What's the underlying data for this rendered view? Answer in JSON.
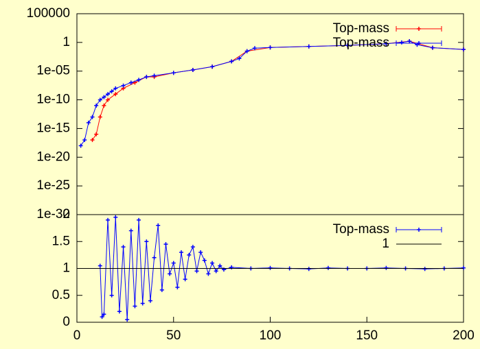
{
  "chart_data": [
    {
      "type": "line",
      "log_y": true,
      "legend": "top-right",
      "xlim": [
        0,
        200
      ],
      "ylim": [
        1e-30,
        100000
      ],
      "yticks": [
        100000,
        1,
        {
          "value": 1e-05,
          "label": "1e-05"
        },
        {
          "value": 1e-10,
          "label": "1e-10"
        },
        {
          "value": 1e-15,
          "label": "1e-15"
        },
        {
          "value": 1e-20,
          "label": "1e-20"
        },
        {
          "value": 1e-25,
          "label": "1e-25"
        },
        {
          "value": 1e-30,
          "label": "1e-30"
        }
      ],
      "series": [
        {
          "name": "Top-mass",
          "color": "#ff0000",
          "x": [
            8,
            10,
            12,
            14,
            16,
            20,
            24,
            30,
            36,
            40,
            50,
            60,
            70,
            80,
            88,
            100,
            120,
            140,
            160,
            172,
            184,
            200
          ],
          "values": [
            1e-17,
            1e-16,
            1e-13,
            1e-11,
            1e-10,
            1e-09,
            1e-08,
            1e-07,
            1e-06,
            1e-06,
            5e-06,
            1.6e-05,
            6e-05,
            0.0005,
            0.03,
            0.13,
            0.2,
            0.3,
            0.6,
            1.6,
            0.12,
            0.06
          ]
        },
        {
          "name": "Top-mass",
          "color": "#0000ff",
          "x": [
            2,
            4,
            6,
            8,
            10,
            12,
            14,
            16,
            18,
            20,
            24,
            28,
            32,
            36,
            40,
            50,
            60,
            70,
            80,
            84,
            88,
            92,
            100,
            120,
            140,
            160,
            168,
            172,
            176,
            184,
            200
          ],
          "values": [
            1e-18,
            1e-17,
            1e-14,
            1e-13,
            1e-11,
            1e-10,
            3e-10,
            1e-09,
            3e-09,
            1e-08,
            3e-08,
            1e-07,
            3e-07,
            1e-06,
            1.6e-06,
            5e-06,
            1.6e-05,
            6e-05,
            0.0005,
            0.0016,
            0.03,
            0.1,
            0.13,
            0.2,
            0.3,
            0.6,
            1,
            1.6,
            0.4,
            0.12,
            0.06
          ]
        }
      ]
    },
    {
      "type": "line",
      "legend": "top-right",
      "xlim": [
        0,
        200
      ],
      "ylim": [
        0,
        2
      ],
      "xticks": [
        0,
        50,
        100,
        150,
        200
      ],
      "yticks": [
        0,
        0.5,
        1,
        1.5,
        2
      ],
      "series": [
        {
          "name": "Top-mass",
          "color": "#0000ff",
          "x": [
            12,
            13,
            14,
            16,
            18,
            20,
            22,
            24,
            26,
            28,
            30,
            32,
            34,
            36,
            38,
            40,
            42,
            44,
            46,
            48,
            50,
            52,
            54,
            56,
            58,
            60,
            62,
            64,
            66,
            68,
            70,
            72,
            74,
            76,
            80,
            90,
            100,
            110,
            120,
            130,
            140,
            150,
            160,
            170,
            180,
            190,
            200
          ],
          "values": [
            1.05,
            0.1,
            0.15,
            1.9,
            0.5,
            1.95,
            0.2,
            1.4,
            0.05,
            1.7,
            0.3,
            1.9,
            0.35,
            1.5,
            0.4,
            1.2,
            1.8,
            0.6,
            1.45,
            0.9,
            1.1,
            0.65,
            1.3,
            0.8,
            1.25,
            1.4,
            0.95,
            1.3,
            1.15,
            0.9,
            1.1,
            0.95,
            1.05,
            0.98,
            1.02,
            1.0,
            1.01,
            1.0,
            0.99,
            1.01,
            1.0,
            1.0,
            1.01,
            1.0,
            0.99,
            1.0,
            1.01
          ]
        },
        {
          "name": "1",
          "color": "#000000",
          "x": [
            0,
            200
          ],
          "values": [
            1,
            1
          ]
        }
      ]
    }
  ]
}
